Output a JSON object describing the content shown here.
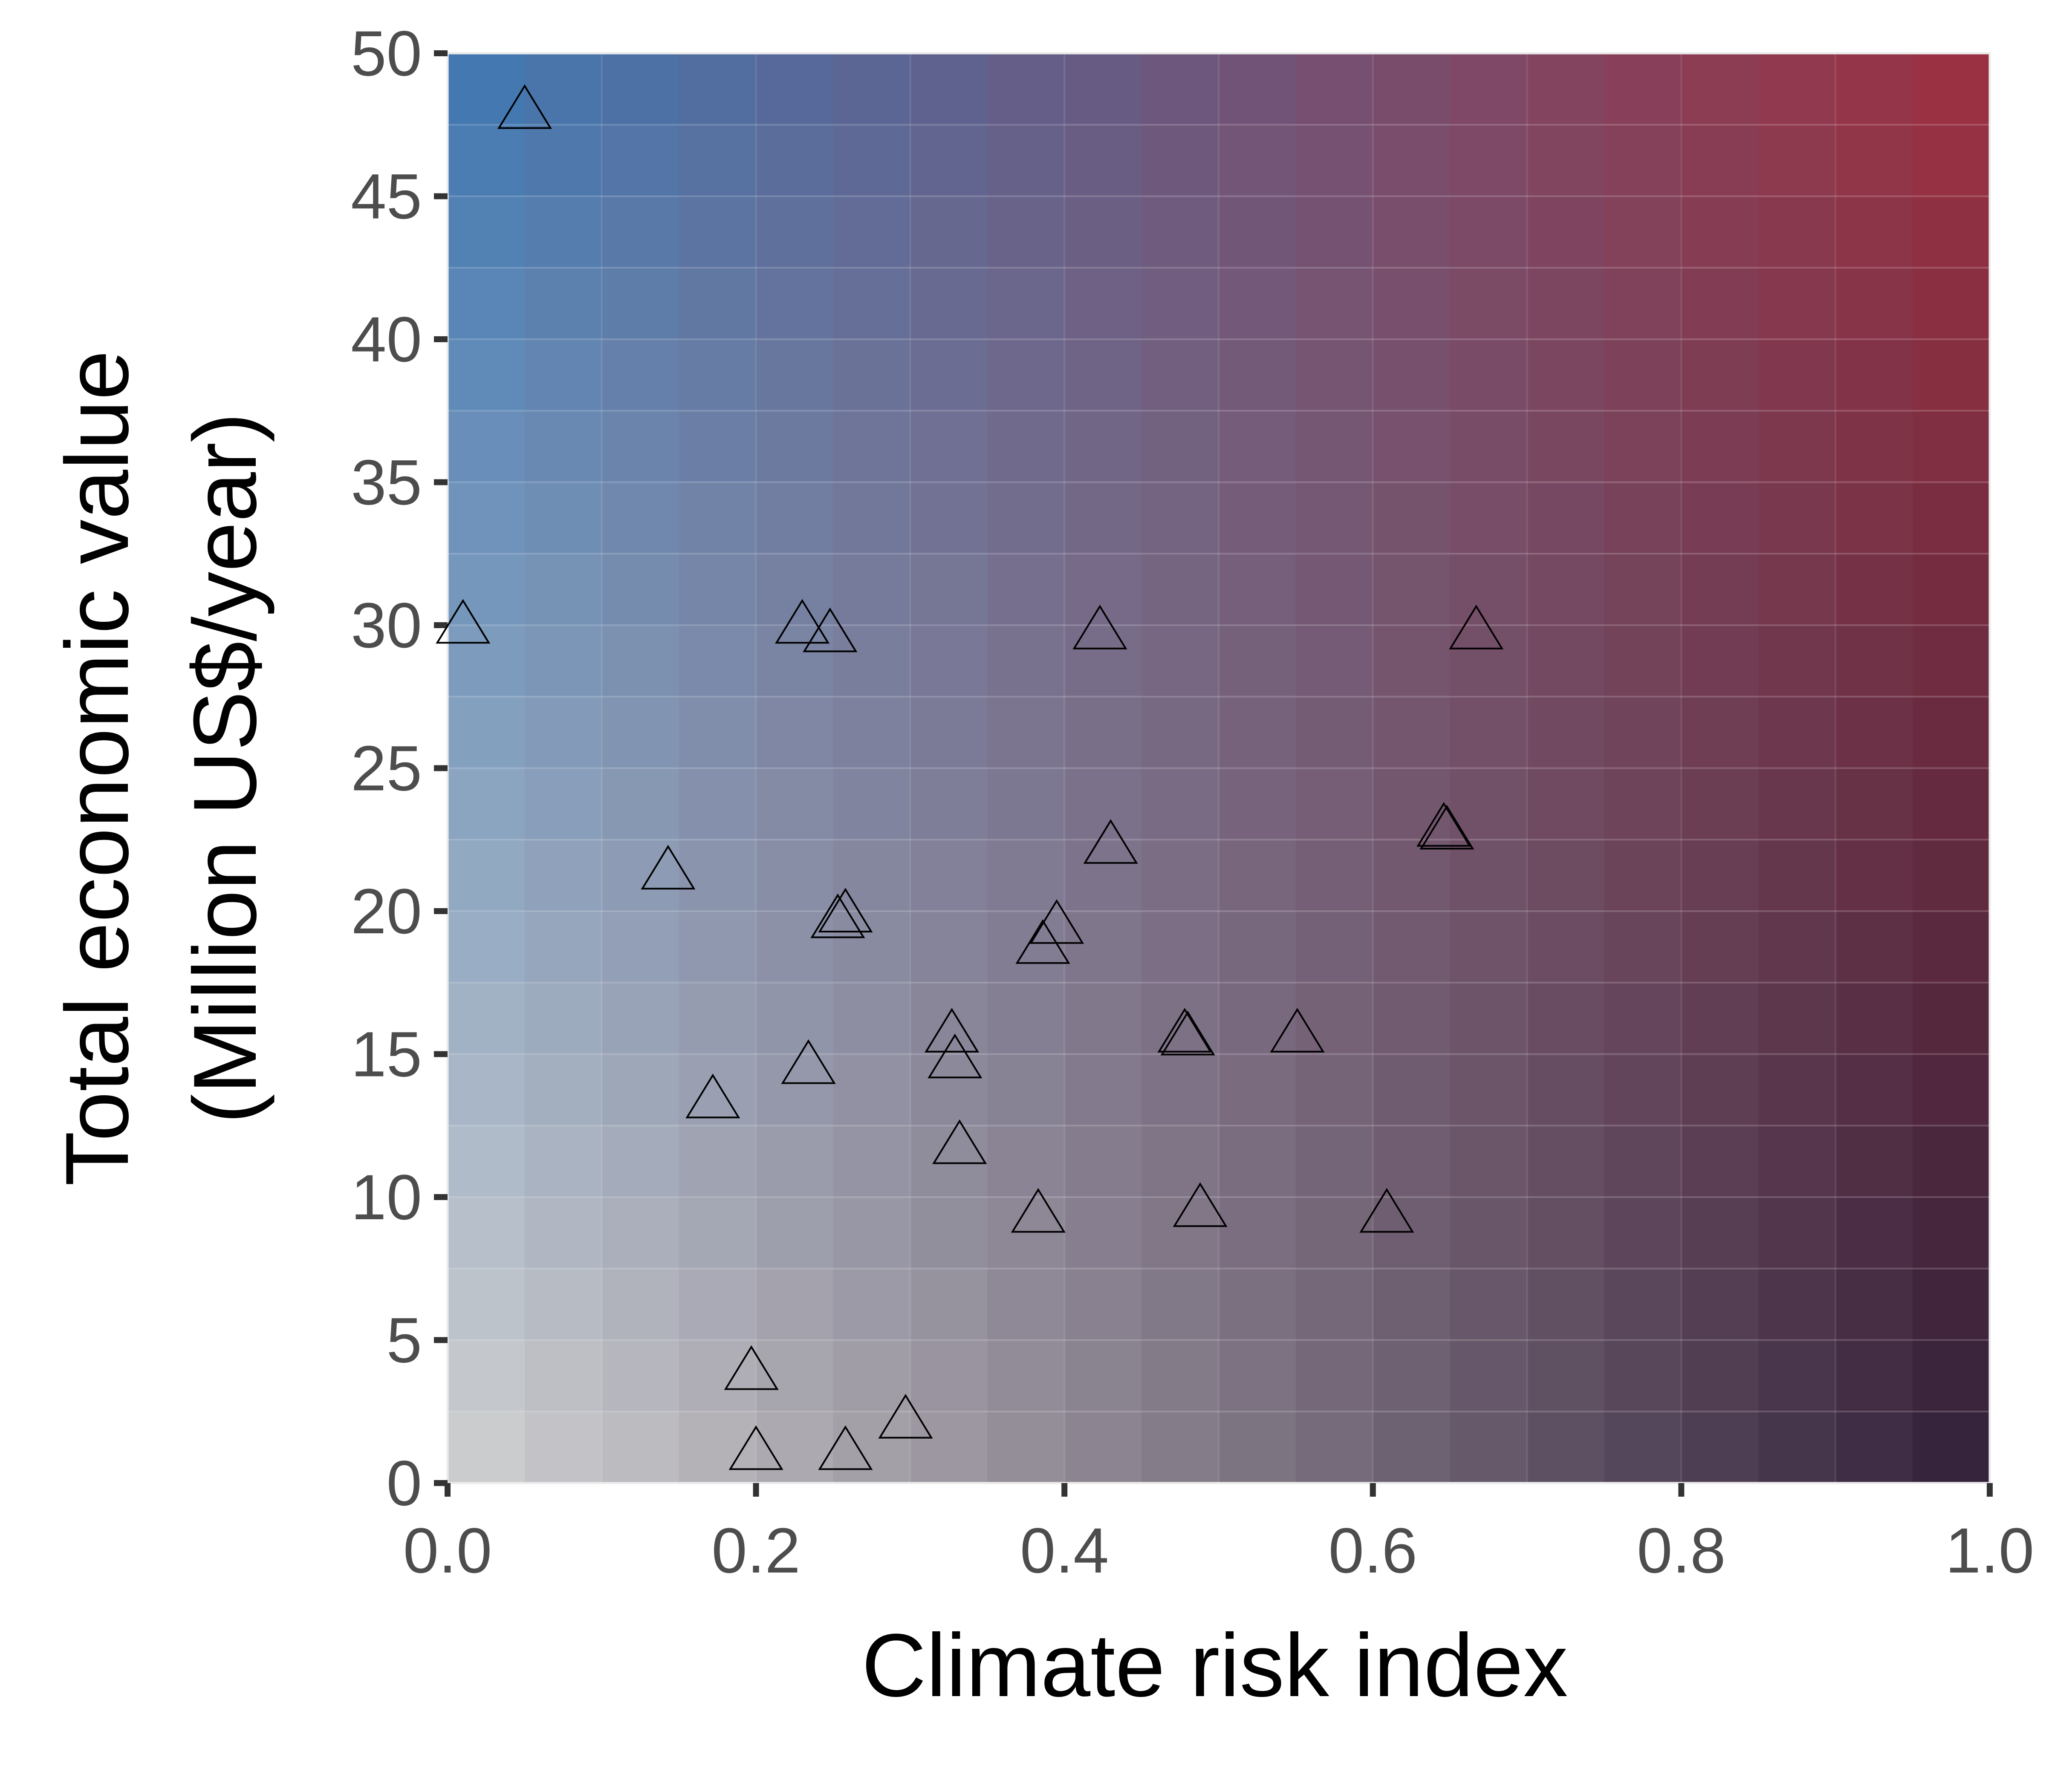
{
  "chart_data": {
    "type": "scatter",
    "title": "",
    "xlabel": "Climate risk index",
    "ylabel_lines": [
      "Total economic value",
      "(Million US$/year)"
    ],
    "xlim": [
      0,
      1
    ],
    "ylim": [
      0,
      50
    ],
    "x_ticks": [
      0.0,
      0.2,
      0.4,
      0.6,
      0.8,
      1.0
    ],
    "x_tick_labels": [
      "0.0",
      "0.2",
      "0.4",
      "0.6",
      "0.8",
      "1.0"
    ],
    "y_ticks": [
      0,
      5,
      10,
      15,
      20,
      25,
      30,
      35,
      40,
      45,
      50
    ],
    "y_tick_labels": [
      "0",
      "5",
      "10",
      "15",
      "20",
      "25",
      "30",
      "35",
      "40",
      "45",
      "50"
    ],
    "marker": "open-triangle",
    "background": {
      "type": "bivariate-gradient",
      "x_steps": 20,
      "y_steps": 20,
      "colors": {
        "low_x_low_y": "#d3d3d3",
        "high_x_low_y": "#2f1f38",
        "low_x_high_y": "#3e78b3",
        "high_x_high_y": "#9f3040"
      }
    },
    "points": [
      {
        "x": 0.05,
        "y": 48.0
      },
      {
        "x": 0.01,
        "y": 30.0
      },
      {
        "x": 0.23,
        "y": 30.0
      },
      {
        "x": 0.248,
        "y": 29.7
      },
      {
        "x": 0.423,
        "y": 29.8
      },
      {
        "x": 0.667,
        "y": 29.8
      },
      {
        "x": 0.143,
        "y": 21.4
      },
      {
        "x": 0.43,
        "y": 22.3
      },
      {
        "x": 0.646,
        "y": 22.9
      },
      {
        "x": 0.648,
        "y": 22.8
      },
      {
        "x": 0.258,
        "y": 19.9
      },
      {
        "x": 0.253,
        "y": 19.7
      },
      {
        "x": 0.395,
        "y": 19.5
      },
      {
        "x": 0.386,
        "y": 18.8
      },
      {
        "x": 0.327,
        "y": 15.7
      },
      {
        "x": 0.329,
        "y": 14.8
      },
      {
        "x": 0.478,
        "y": 15.7
      },
      {
        "x": 0.48,
        "y": 15.6
      },
      {
        "x": 0.551,
        "y": 15.7
      },
      {
        "x": 0.234,
        "y": 14.6
      },
      {
        "x": 0.172,
        "y": 13.4
      },
      {
        "x": 0.332,
        "y": 11.8
      },
      {
        "x": 0.383,
        "y": 9.4
      },
      {
        "x": 0.488,
        "y": 9.6
      },
      {
        "x": 0.609,
        "y": 9.4
      },
      {
        "x": 0.197,
        "y": 3.9
      },
      {
        "x": 0.2,
        "y": 1.1
      },
      {
        "x": 0.258,
        "y": 1.1
      },
      {
        "x": 0.297,
        "y": 2.2
      }
    ]
  }
}
